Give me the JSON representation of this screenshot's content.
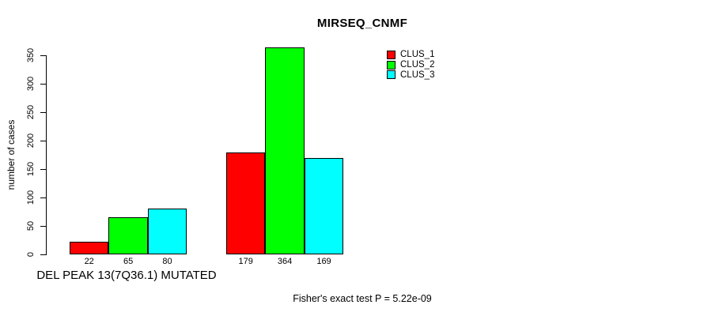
{
  "chart_data": {
    "type": "bar",
    "title": "MIRSEQ_CNMF",
    "ylabel": "number of cases",
    "xlabel": "DEL PEAK 13(7Q36.1) MUTATED",
    "annotation": "Fisher's exact test P = 5.22e-09",
    "categories": [
      "DEL PEAK 13(7Q36.1) MUTATED",
      ""
    ],
    "series": [
      {
        "name": "CLUS_1",
        "color": "#ff0000",
        "values": [
          22,
          179
        ]
      },
      {
        "name": "CLUS_2",
        "color": "#00ff00",
        "values": [
          65,
          364
        ]
      },
      {
        "name": "CLUS_3",
        "color": "#00ffff",
        "values": [
          80,
          169
        ]
      }
    ],
    "yticks": [
      0,
      50,
      100,
      150,
      200,
      250,
      300,
      350
    ],
    "ylim": [
      0,
      364
    ],
    "bar_value_labels": true,
    "legend_position": "top-right",
    "grid": false,
    "background": "#ffffff"
  }
}
